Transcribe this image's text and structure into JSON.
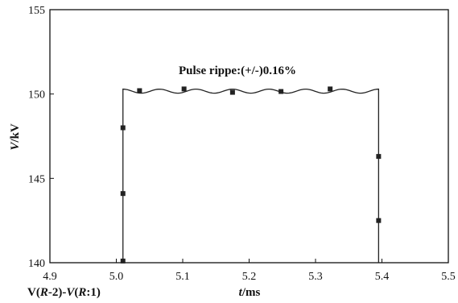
{
  "chart_data": {
    "type": "line",
    "annotation": "Pulse rippe:(+/-)0.16%",
    "ylabel": {
      "italic": "V",
      "rest": "/kV"
    },
    "xlabel": {
      "italic": "t",
      "rest": "/ms"
    },
    "signal_label": [
      {
        "text": "V(",
        "italic": false
      },
      {
        "text": "R",
        "italic": true
      },
      {
        "text": "-2)-",
        "italic": false
      },
      {
        "text": "V",
        "italic": true
      },
      {
        "text": "(",
        "italic": false
      },
      {
        "text": "R",
        "italic": true
      },
      {
        "text": ":1)",
        "italic": false
      }
    ],
    "xlim": [
      4.9,
      5.5
    ],
    "ylim": [
      140,
      155
    ],
    "x_ticks": [
      "4.9",
      "5.0",
      "5.1",
      "5.2",
      "5.3",
      "5.4",
      "5.5"
    ],
    "y_ticks": [
      "140",
      "145",
      "150",
      "155"
    ],
    "grid": false,
    "pulse": {
      "rise_time": 5.01,
      "fall_time": 5.395,
      "baseline": 140,
      "mean_level": 150.17,
      "ripple_amplitude": 0.12,
      "ripple_cycles": 7
    },
    "markers": [
      {
        "x": 5.01,
        "y": 140.1
      },
      {
        "x": 5.01,
        "y": 144.1
      },
      {
        "x": 5.01,
        "y": 148.0
      },
      {
        "x": 5.035,
        "y": 150.2
      },
      {
        "x": 5.102,
        "y": 150.3
      },
      {
        "x": 5.175,
        "y": 150.1
      },
      {
        "x": 5.248,
        "y": 150.15
      },
      {
        "x": 5.322,
        "y": 150.3
      },
      {
        "x": 5.395,
        "y": 146.3
      },
      {
        "x": 5.395,
        "y": 142.5
      }
    ]
  }
}
